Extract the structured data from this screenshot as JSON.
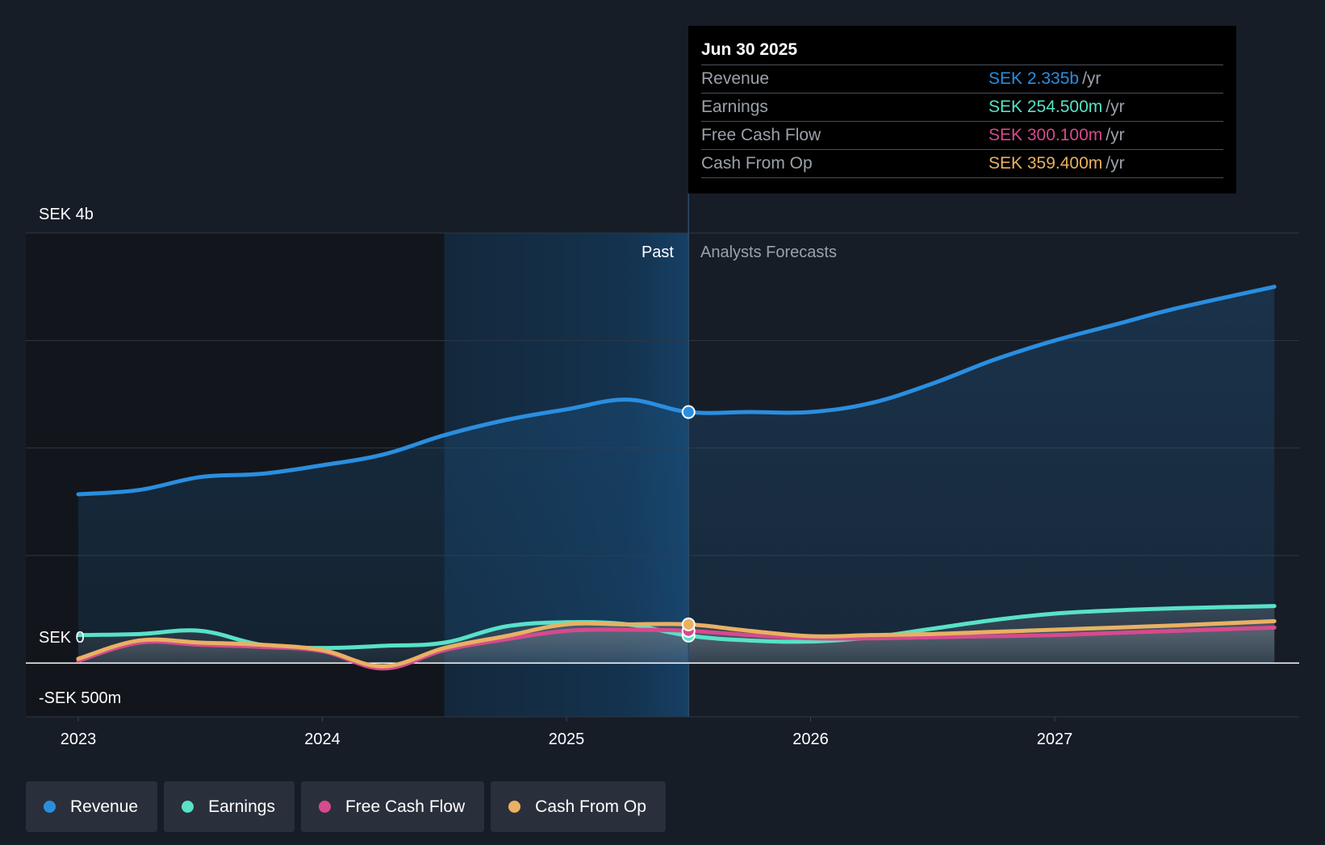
{
  "chart_data": {
    "type": "area",
    "y_unit": "SEK",
    "ylim": [
      -0.5,
      4.0
    ],
    "y_tick_labels": [
      "SEK 4b",
      "SEK 0",
      "-SEK 500m"
    ],
    "x_tick_labels": [
      "2023",
      "2024",
      "2025",
      "2026",
      "2027"
    ],
    "xlim": [
      2023.0,
      2027.9
    ],
    "divider_x": 2025.5,
    "past_shade_start_x": 2024.5,
    "past_label": "Past",
    "forecast_label": "Analysts Forecasts",
    "series": [
      {
        "key": "earnings",
        "name": "Earnings",
        "color": "#58e2c8",
        "x": [
          2023.0,
          2023.25,
          2023.5,
          2023.75,
          2024.0,
          2024.25,
          2024.5,
          2024.75,
          2025.0,
          2025.25,
          2025.5,
          2025.75,
          2026.0,
          2026.25,
          2026.5,
          2026.75,
          2027.0,
          2027.25,
          2027.5,
          2027.9
        ],
        "y": [
          0.26,
          0.27,
          0.3,
          0.17,
          0.14,
          0.16,
          0.19,
          0.34,
          0.38,
          0.36,
          0.2545,
          0.21,
          0.2,
          0.24,
          0.32,
          0.4,
          0.46,
          0.49,
          0.51,
          0.53
        ]
      },
      {
        "key": "fcf",
        "name": "Free Cash Flow",
        "color": "#d64a8e",
        "x": [
          2023.0,
          2023.25,
          2023.5,
          2023.75,
          2024.0,
          2024.25,
          2024.5,
          2024.75,
          2025.0,
          2025.25,
          2025.5,
          2025.75,
          2026.0,
          2026.25,
          2026.5,
          2026.75,
          2027.0,
          2027.25,
          2027.5,
          2027.9
        ],
        "y": [
          0.02,
          0.19,
          0.17,
          0.15,
          0.11,
          -0.05,
          0.12,
          0.22,
          0.3,
          0.31,
          0.3001,
          0.26,
          0.23,
          0.23,
          0.24,
          0.25,
          0.26,
          0.28,
          0.3,
          0.33
        ]
      },
      {
        "key": "cfo",
        "name": "Cash From Op",
        "color": "#e9b162",
        "x": [
          2023.0,
          2023.25,
          2023.5,
          2023.75,
          2024.0,
          2024.25,
          2024.5,
          2024.75,
          2025.0,
          2025.25,
          2025.5,
          2025.75,
          2026.0,
          2026.25,
          2026.5,
          2026.75,
          2027.0,
          2027.25,
          2027.5,
          2027.9
        ],
        "y": [
          0.04,
          0.21,
          0.19,
          0.17,
          0.12,
          -0.03,
          0.14,
          0.25,
          0.36,
          0.36,
          0.3594,
          0.3,
          0.25,
          0.26,
          0.27,
          0.29,
          0.31,
          0.33,
          0.35,
          0.39
        ]
      },
      {
        "key": "revenue",
        "name": "Revenue",
        "color": "#2a8ee0",
        "x": [
          2023.0,
          2023.25,
          2023.5,
          2023.75,
          2024.0,
          2024.25,
          2024.5,
          2024.75,
          2025.0,
          2025.25,
          2025.5,
          2025.75,
          2026.0,
          2026.25,
          2026.5,
          2026.75,
          2027.0,
          2027.25,
          2027.5,
          2027.9
        ],
        "y": [
          1.57,
          1.61,
          1.73,
          1.76,
          1.84,
          1.94,
          2.12,
          2.26,
          2.36,
          2.45,
          2.335,
          2.335,
          2.335,
          2.42,
          2.6,
          2.82,
          3.0,
          3.15,
          3.3,
          3.5
        ]
      }
    ]
  },
  "tooltip": {
    "date": "Jun 30 2025",
    "rows": [
      {
        "name": "Revenue",
        "value": "SEK 2.335b",
        "unit": "/yr",
        "color": "#2a8ee0"
      },
      {
        "name": "Earnings",
        "value": "SEK 254.500m",
        "unit": "/yr",
        "color": "#58e2c8"
      },
      {
        "name": "Free Cash Flow",
        "value": "SEK 300.100m",
        "unit": "/yr",
        "color": "#d64a8e"
      },
      {
        "name": "Cash From Op",
        "value": "SEK 359.400m",
        "unit": "/yr",
        "color": "#e9b162"
      }
    ]
  },
  "legend": {
    "items": [
      {
        "label": "Revenue",
        "color": "#2a8ee0"
      },
      {
        "label": "Earnings",
        "color": "#58e2c8"
      },
      {
        "label": "Free Cash Flow",
        "color": "#d64a8e"
      },
      {
        "label": "Cash From Op",
        "color": "#e9b162"
      }
    ]
  }
}
